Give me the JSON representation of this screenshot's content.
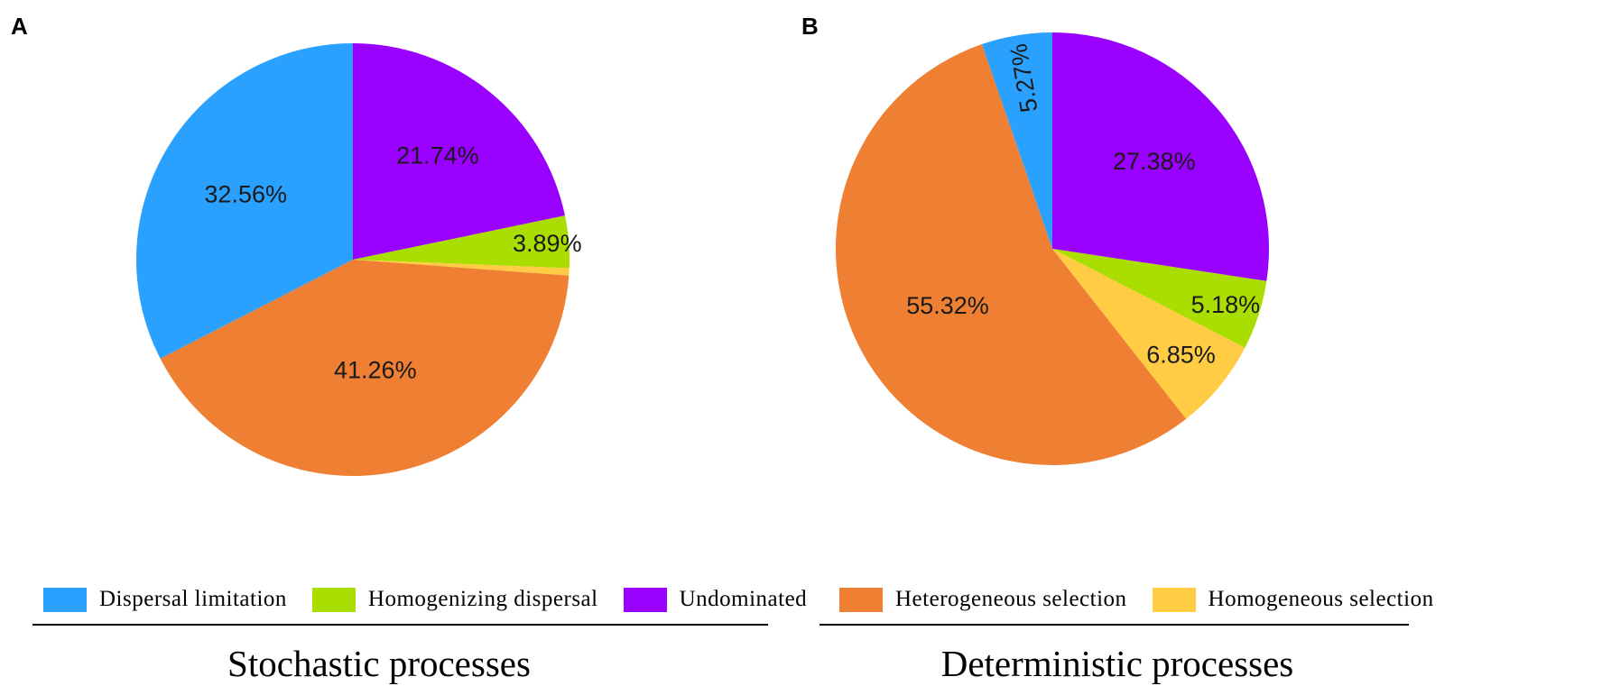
{
  "chart_data": [
    {
      "type": "pie",
      "panel": "A",
      "title": "Stochastic processes",
      "slices": [
        {
          "label": "Undominated",
          "value": 21.74,
          "text": "21.74%",
          "color": "#9900FF"
        },
        {
          "label": "Homogenizing dispersal",
          "value": 3.89,
          "text": "3.89%",
          "color": "#AADD00"
        },
        {
          "label": "Homogeneous selection",
          "value": 0.55,
          "text": "",
          "color": "#FFCC44"
        },
        {
          "label": "Heterogeneous selection",
          "value": 41.26,
          "text": "41.26%",
          "color": "#EE7F33"
        },
        {
          "label": "Dispersal limitation",
          "value": 32.56,
          "text": "32.56%",
          "color": "#2AA1FF"
        }
      ],
      "legend": [
        {
          "label": "Dispersal limitation",
          "color": "#2AA1FF"
        },
        {
          "label": "Homogenizing dispersal",
          "color": "#AADD00"
        },
        {
          "label": "Undominated",
          "color": "#9900FF"
        }
      ]
    },
    {
      "type": "pie",
      "panel": "B",
      "title": "Deterministic processes",
      "slices": [
        {
          "label": "Undominated",
          "value": 27.38,
          "text": "27.38%",
          "color": "#9900FF"
        },
        {
          "label": "Homogenizing dispersal",
          "value": 5.18,
          "text": "5.18%",
          "color": "#AADD00"
        },
        {
          "label": "Homogeneous selection",
          "value": 6.85,
          "text": "6.85%",
          "color": "#FFCC44"
        },
        {
          "label": "Heterogeneous selection",
          "value": 55.32,
          "text": "55.32%",
          "color": "#EE7F33"
        },
        {
          "label": "Dispersal limitation",
          "value": 5.27,
          "text": "5.27%",
          "color": "#2AA1FF"
        }
      ],
      "legend": [
        {
          "label": "Heterogeneous selection",
          "color": "#EE7F33"
        },
        {
          "label": "Homogeneous selection",
          "color": "#FFCC44"
        }
      ]
    }
  ]
}
